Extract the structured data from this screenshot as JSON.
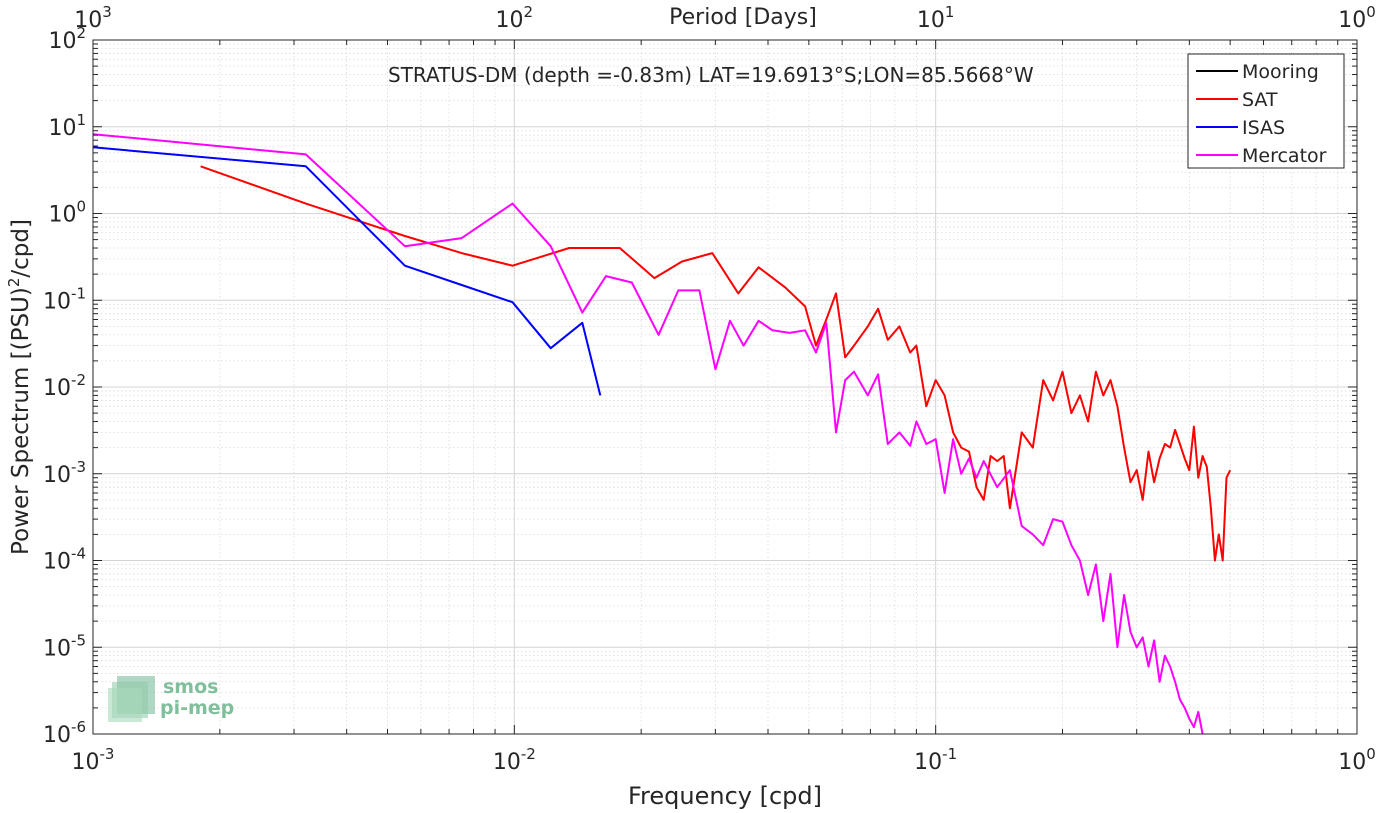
{
  "chart_data": {
    "type": "line",
    "title": "STRATUS-DM (depth =-0.83m) LAT=19.6913°S;LON=85.5668°W",
    "xlabel": "Frequency [cpd]",
    "ylabel_main": "Power Spectrum [(PSU)",
    "ylabel_sup": "2",
    "ylabel_tail": "/cpd]",
    "top_axis_label": "Period [Days]",
    "x_scale": "log",
    "y_scale": "log",
    "xlim": [
      0.001,
      1
    ],
    "ylim": [
      1e-06,
      100
    ],
    "grid": true,
    "legend_position": "top-right",
    "x_ticks": [
      {
        "v": 0.001,
        "base": "10",
        "exp": "-3"
      },
      {
        "v": 0.01,
        "base": "10",
        "exp": "-2"
      },
      {
        "v": 0.1,
        "base": "10",
        "exp": "-1"
      },
      {
        "v": 1,
        "base": "10",
        "exp": "0"
      }
    ],
    "top_ticks": [
      {
        "v": 0.001,
        "base": "10",
        "exp": "3"
      },
      {
        "v": 0.01,
        "base": "10",
        "exp": "2"
      },
      {
        "v": 0.1,
        "base": "10",
        "exp": "1"
      },
      {
        "v": 1,
        "base": "10",
        "exp": "0"
      }
    ],
    "y_ticks": [
      {
        "v": 100,
        "base": "10",
        "exp": "2"
      },
      {
        "v": 10,
        "base": "10",
        "exp": "1"
      },
      {
        "v": 1,
        "base": "10",
        "exp": "0"
      },
      {
        "v": 0.1,
        "base": "10",
        "exp": "-1"
      },
      {
        "v": 0.01,
        "base": "10",
        "exp": "-2"
      },
      {
        "v": 0.001,
        "base": "10",
        "exp": "-3"
      },
      {
        "v": 0.0001,
        "base": "10",
        "exp": "-4"
      },
      {
        "v": 1e-05,
        "base": "10",
        "exp": "-5"
      },
      {
        "v": 1e-06,
        "base": "10",
        "exp": "-6"
      }
    ],
    "series": [
      {
        "name": "Mooring",
        "color": "#000000",
        "x": [],
        "y": []
      },
      {
        "name": "SAT",
        "color": "#ff0000",
        "x": [
          0.0018,
          0.0032,
          0.0055,
          0.0075,
          0.0099,
          0.0135,
          0.0178,
          0.0215,
          0.025,
          0.0295,
          0.034,
          0.038,
          0.044,
          0.049,
          0.052,
          0.055,
          0.058,
          0.061,
          0.064,
          0.069,
          0.073,
          0.077,
          0.082,
          0.087,
          0.09,
          0.095,
          0.1,
          0.105,
          0.11,
          0.115,
          0.12,
          0.125,
          0.13,
          0.135,
          0.14,
          0.145,
          0.15,
          0.16,
          0.17,
          0.18,
          0.19,
          0.2,
          0.21,
          0.22,
          0.23,
          0.24,
          0.25,
          0.26,
          0.27,
          0.28,
          0.29,
          0.3,
          0.31,
          0.32,
          0.33,
          0.34,
          0.35,
          0.36,
          0.37,
          0.38,
          0.39,
          0.4,
          0.41,
          0.42,
          0.43,
          0.44,
          0.45,
          0.46,
          0.47,
          0.48,
          0.49,
          0.5
        ],
        "y": [
          3.5,
          1.3,
          0.55,
          0.35,
          0.25,
          0.4,
          0.4,
          0.18,
          0.28,
          0.35,
          0.12,
          0.24,
          0.14,
          0.085,
          0.03,
          0.06,
          0.12,
          0.022,
          0.03,
          0.05,
          0.08,
          0.035,
          0.05,
          0.025,
          0.03,
          0.006,
          0.012,
          0.008,
          0.003,
          0.002,
          0.0018,
          0.0007,
          0.0005,
          0.0016,
          0.0014,
          0.0016,
          0.0004,
          0.003,
          0.002,
          0.012,
          0.007,
          0.015,
          0.005,
          0.008,
          0.004,
          0.015,
          0.008,
          0.012,
          0.006,
          0.002,
          0.0008,
          0.0011,
          0.0005,
          0.0018,
          0.0008,
          0.0015,
          0.0022,
          0.002,
          0.0032,
          0.0022,
          0.0015,
          0.0011,
          0.0035,
          0.0009,
          0.0016,
          0.0012,
          0.0004,
          0.0001,
          0.0002,
          0.0001,
          0.0009,
          0.0011
        ]
      },
      {
        "name": "ISAS",
        "color": "#0000ff",
        "x": [
          0.001,
          0.0032,
          0.0055,
          0.0075,
          0.0099,
          0.0122,
          0.0145,
          0.016
        ],
        "y": [
          5.8,
          3.5,
          0.25,
          0.15,
          0.095,
          0.028,
          0.055,
          0.008
        ]
      },
      {
        "name": "Mercator",
        "color": "#ff00ff",
        "x": [
          0.001,
          0.0032,
          0.0055,
          0.0075,
          0.0099,
          0.0122,
          0.0145,
          0.0165,
          0.019,
          0.022,
          0.0245,
          0.0275,
          0.03,
          0.0325,
          0.035,
          0.038,
          0.041,
          0.045,
          0.049,
          0.052,
          0.055,
          0.058,
          0.061,
          0.064,
          0.069,
          0.073,
          0.077,
          0.082,
          0.087,
          0.09,
          0.095,
          0.1,
          0.105,
          0.11,
          0.115,
          0.12,
          0.125,
          0.13,
          0.14,
          0.15,
          0.16,
          0.17,
          0.18,
          0.19,
          0.2,
          0.21,
          0.22,
          0.23,
          0.24,
          0.25,
          0.26,
          0.27,
          0.28,
          0.29,
          0.3,
          0.31,
          0.32,
          0.33,
          0.34,
          0.35,
          0.36,
          0.37,
          0.38,
          0.39,
          0.4,
          0.41,
          0.42,
          0.43
        ],
        "y": [
          8.2,
          4.8,
          0.42,
          0.52,
          1.3,
          0.42,
          0.072,
          0.19,
          0.16,
          0.04,
          0.13,
          0.13,
          0.016,
          0.058,
          0.03,
          0.058,
          0.045,
          0.042,
          0.045,
          0.025,
          0.055,
          0.003,
          0.012,
          0.015,
          0.008,
          0.014,
          0.0022,
          0.003,
          0.0021,
          0.004,
          0.0022,
          0.0025,
          0.0006,
          0.0025,
          0.001,
          0.0015,
          0.0009,
          0.0014,
          0.0007,
          0.0011,
          0.00025,
          0.0002,
          0.00015,
          0.0003,
          0.00028,
          0.00015,
          0.0001,
          4e-05,
          9e-05,
          2e-05,
          7e-05,
          1e-05,
          4e-05,
          1.5e-05,
          1e-05,
          1.3e-05,
          6e-06,
          1.2e-05,
          4e-06,
          8e-06,
          6e-06,
          4e-06,
          2.5e-06,
          2e-06,
          1.5e-06,
          1.2e-06,
          1.8e-06,
          1e-06
        ]
      }
    ]
  },
  "logo": {
    "line1": "smos",
    "line2": "pi-mep"
  }
}
